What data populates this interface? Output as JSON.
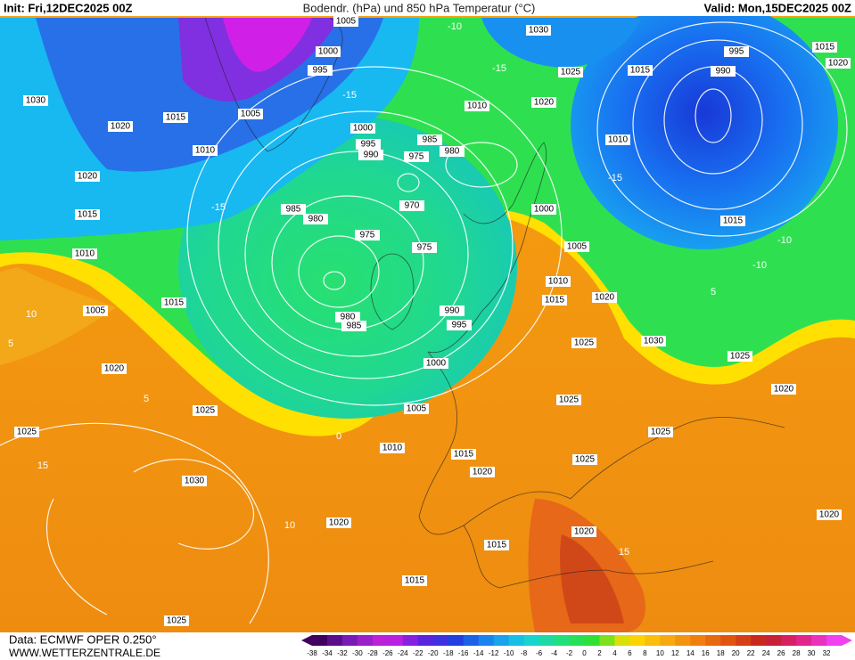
{
  "header": {
    "init": "Init: Fri,12DEC2025 00Z",
    "title": "Bodendr. (hPa) und 850 hPa Temperatur (°C)",
    "valid": "Valid: Mon,15DEC2025 00Z"
  },
  "footer": {
    "source": "Data: ECMWF OPER 0.250°",
    "website": "WWW.WETTERZENTRALE.DE"
  },
  "colorbar": {
    "labels": [
      -38,
      -34,
      -32,
      -30,
      -28,
      -26,
      -24,
      -22,
      -20,
      -18,
      -16,
      -14,
      -12,
      -10,
      -8,
      -6,
      -4,
      -2,
      0,
      2,
      4,
      6,
      8,
      10,
      12,
      14,
      16,
      18,
      20,
      22,
      24,
      26,
      28,
      30,
      32
    ]
  },
  "pressure_labels": [
    1005,
    1000,
    995,
    1030,
    1020,
    1015,
    1005,
    1010,
    1020,
    1015,
    1010,
    1005,
    1015,
    1020,
    1025,
    1025,
    1030,
    1020,
    1025,
    1000,
    995,
    990,
    985,
    980,
    975,
    970,
    975,
    975,
    980,
    985,
    980,
    985,
    1010,
    1020,
    1030,
    1025,
    1015,
    995,
    990,
    1015,
    1020,
    1010,
    1015,
    1000,
    1005,
    1010,
    1015,
    1020,
    990,
    995,
    1000,
    1005,
    1010,
    1025,
    1030,
    1025,
    1020,
    1025,
    1025,
    1025,
    1015,
    1020,
    1020,
    1015,
    1015,
    1020
  ],
  "temperature_labels": [
    -10,
    -15,
    -15,
    -15,
    -15,
    -10,
    10,
    5,
    5,
    0,
    10,
    15,
    5,
    -10,
    15
  ]
}
